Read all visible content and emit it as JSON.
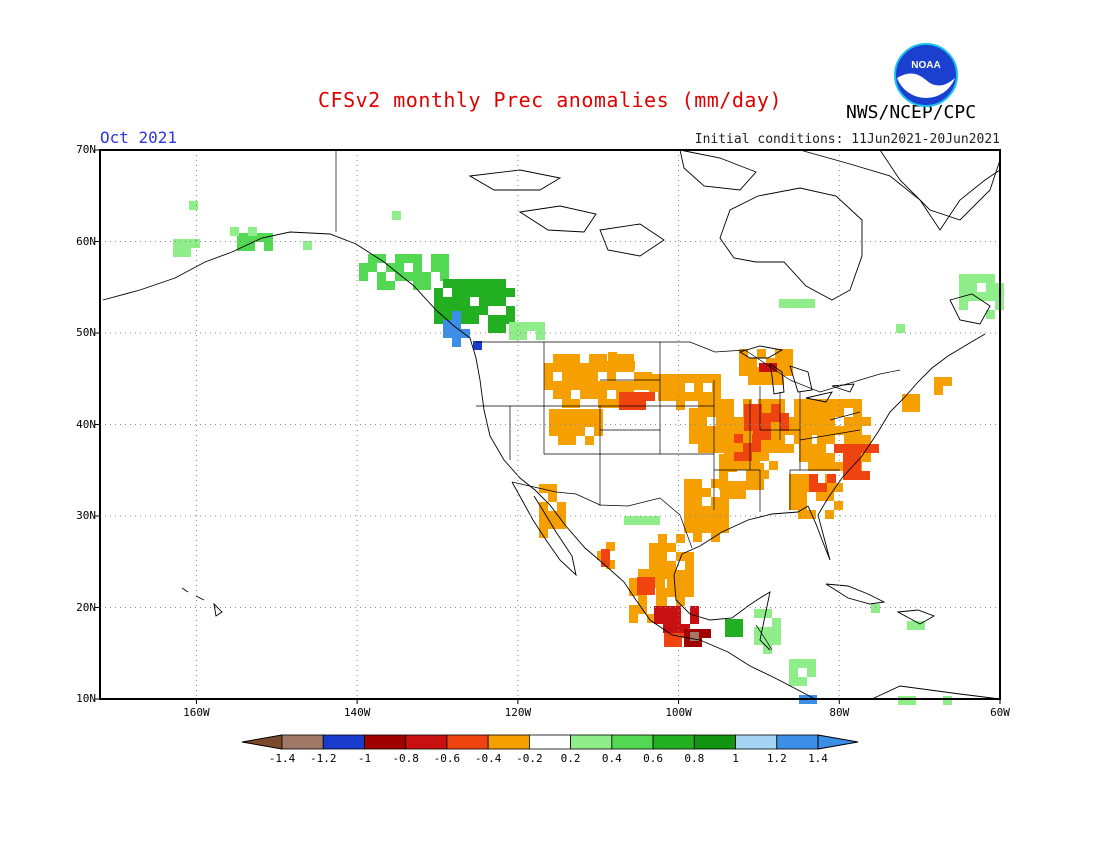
{
  "header": {
    "title": "CFSv2 monthly Prec anomalies (mm/day)",
    "agency": "NWS/NCEP/CPC",
    "month": "Oct 2021",
    "initial_conditions": "Initial conditions: 11Jun2021-20Jun2021",
    "logo_text": "NOAA"
  },
  "map": {
    "lat_labels": [
      "70N",
      "60N",
      "50N",
      "40N",
      "30N",
      "20N",
      "10N"
    ],
    "lon_labels": [
      "160W",
      "140W",
      "120W",
      "100W",
      "80W",
      "60W"
    ],
    "lon_range": [
      -172,
      -60
    ],
    "lat_range": [
      10,
      70
    ],
    "gridlines": "dotted"
  },
  "colorbar": {
    "colors": [
      "#7a4b2a",
      "#a07868",
      "#1a3ccc",
      "#a00000",
      "#c81010",
      "#f04410",
      "#f5a000",
      "#ffffff",
      "#90ee8a",
      "#52d852",
      "#22b022",
      "#129412",
      "#a6d4f5",
      "#3c8ee6",
      "#3c8ee6"
    ],
    "labels": [
      "-1.4",
      "-1.2",
      "-1",
      "-0.8",
      "-0.6",
      "-0.4",
      "-0.2",
      "0.2",
      "0.4",
      "0.6",
      "0.8",
      "1",
      "1.2",
      "1.4"
    ]
  },
  "anomaly_colors": {
    "orange": "#f5a000",
    "red_orange": "#f04410",
    "red": "#c81010",
    "dark_red": "#a00000",
    "brown_gray": "#a07868",
    "light_green": "#90ee8a",
    "green": "#52d852",
    "mid_green": "#22b022",
    "dark_green": "#129412",
    "blue": "#3c8ee6",
    "deep_blue": "#1a3ccc"
  }
}
